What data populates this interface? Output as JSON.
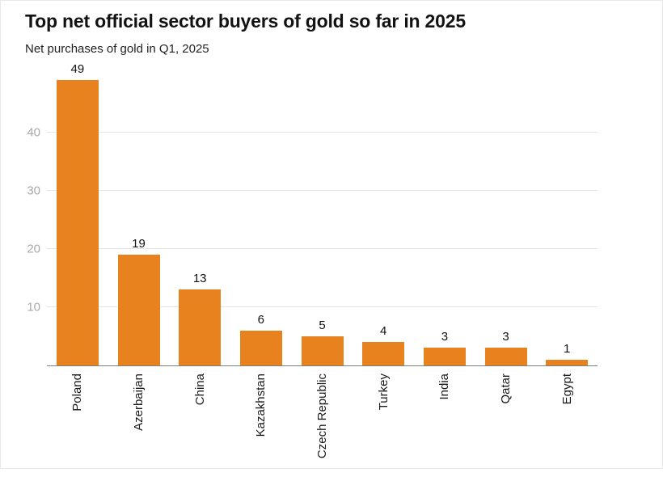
{
  "chart_data": {
    "type": "bar",
    "title": "Top net official sector buyers of gold so far in 2025",
    "subtitle": "Net purchases of gold in Q1, 2025",
    "categories": [
      "Poland",
      "Azerbaijan",
      "China",
      "Kazakhstan",
      "Czech Republic",
      "Turkey",
      "India",
      "Qatar",
      "Egypt"
    ],
    "values": [
      49,
      19,
      13,
      6,
      5,
      4,
      3,
      3,
      1
    ],
    "ylim": [
      0,
      49
    ],
    "yticks": [
      10,
      20,
      30,
      40
    ],
    "grid": true,
    "legend": "none",
    "bar_color": "#E8821E",
    "gridline_color": "#e5e5e5",
    "ytick_color": "#a9a9a9",
    "value_label_color": "#121212"
  }
}
